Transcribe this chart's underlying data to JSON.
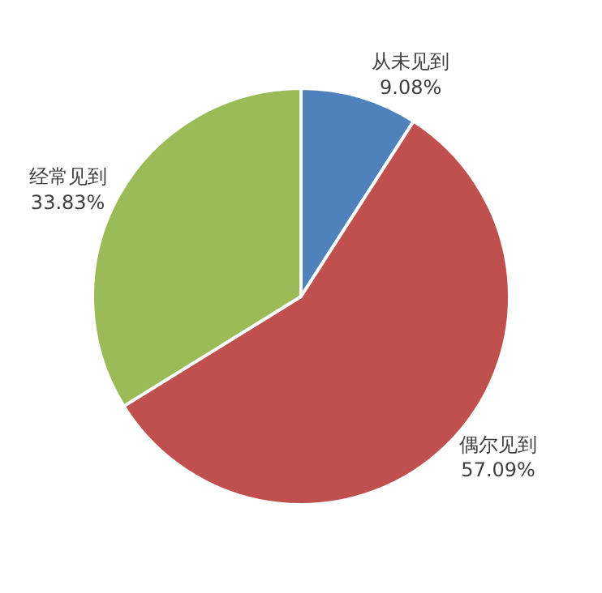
{
  "chart_data": {
    "type": "pie",
    "categories": [
      "从未见到",
      "偶尔见到",
      "经常见到"
    ],
    "values": [
      9.08,
      57.09,
      33.83
    ],
    "value_labels": [
      "9.08%",
      "57.09%",
      "33.83%"
    ],
    "colors": [
      "#4f81bd",
      "#c0504d",
      "#9bbb59"
    ],
    "legend": false
  }
}
